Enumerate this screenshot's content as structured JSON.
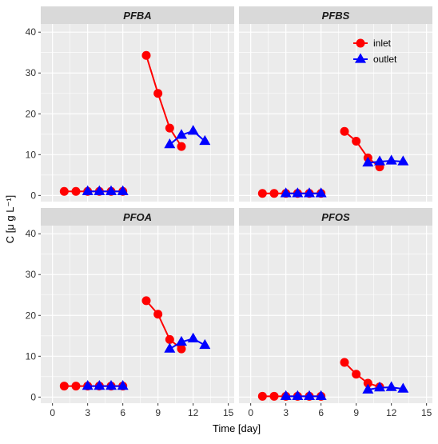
{
  "chart_data": {
    "type": "line",
    "xlabel": "Time [day]",
    "ylabel": "C [μ g L⁻¹]",
    "xlim": [
      -1,
      15.5
    ],
    "ylim": [
      -1.5,
      42
    ],
    "x_ticks": [
      0,
      3,
      6,
      9,
      12,
      15
    ],
    "y_ticks": [
      0,
      10,
      20,
      30,
      40
    ],
    "grid": true,
    "legend_position": "top-right of PFBS panel",
    "colors": {
      "inlet": "#ff0000",
      "outlet": "#0000ff",
      "panel_bg": "#ebebeb",
      "strip_bg": "#d9d9d9",
      "grid": "#ffffff"
    },
    "legend": [
      {
        "name": "inlet",
        "marker": "circle"
      },
      {
        "name": "outlet",
        "marker": "triangle"
      }
    ],
    "panels": [
      {
        "title": "PFBA",
        "series": [
          {
            "name": "inlet",
            "marker": "circle",
            "points": [
              [
                1,
                1.0
              ],
              [
                2,
                1.0
              ],
              [
                3,
                1.0
              ],
              [
                4,
                1.0
              ],
              [
                5,
                1.0
              ],
              [
                6,
                1.0
              ],
              [
                8,
                34.3
              ],
              [
                9,
                25.0
              ],
              [
                10,
                16.5
              ],
              [
                11,
                12.0
              ]
            ]
          },
          {
            "name": "outlet",
            "marker": "triangle",
            "points": [
              [
                3,
                1.0
              ],
              [
                4,
                1.0
              ],
              [
                5,
                1.0
              ],
              [
                6,
                1.0
              ],
              [
                10,
                12.5
              ],
              [
                11,
                14.8
              ],
              [
                12,
                15.8
              ],
              [
                13,
                13.3
              ]
            ]
          }
        ]
      },
      {
        "title": "PFBS",
        "series": [
          {
            "name": "inlet",
            "marker": "circle",
            "points": [
              [
                1,
                0.5
              ],
              [
                2,
                0.5
              ],
              [
                3,
                0.5
              ],
              [
                4,
                0.5
              ],
              [
                5,
                0.5
              ],
              [
                6,
                0.5
              ],
              [
                8,
                15.7
              ],
              [
                9,
                13.3
              ],
              [
                10,
                9.2
              ],
              [
                11,
                7.0
              ]
            ]
          },
          {
            "name": "outlet",
            "marker": "triangle",
            "points": [
              [
                3,
                0.5
              ],
              [
                4,
                0.5
              ],
              [
                5,
                0.5
              ],
              [
                6,
                0.5
              ],
              [
                10,
                8.0
              ],
              [
                11,
                8.3
              ],
              [
                12,
                8.5
              ],
              [
                13,
                8.3
              ]
            ]
          }
        ]
      },
      {
        "title": "PFOA",
        "series": [
          {
            "name": "inlet",
            "marker": "circle",
            "points": [
              [
                1,
                2.7
              ],
              [
                2,
                2.7
              ],
              [
                3,
                2.7
              ],
              [
                4,
                2.7
              ],
              [
                5,
                2.7
              ],
              [
                6,
                2.7
              ],
              [
                8,
                23.6
              ],
              [
                9,
                20.3
              ],
              [
                10,
                14.1
              ],
              [
                11,
                11.8
              ]
            ]
          },
          {
            "name": "outlet",
            "marker": "triangle",
            "points": [
              [
                3,
                2.7
              ],
              [
                4,
                2.7
              ],
              [
                5,
                2.7
              ],
              [
                6,
                2.7
              ],
              [
                10,
                11.8
              ],
              [
                11,
                13.5
              ],
              [
                12,
                14.3
              ],
              [
                13,
                12.7
              ]
            ]
          }
        ]
      },
      {
        "title": "PFOS",
        "series": [
          {
            "name": "inlet",
            "marker": "circle",
            "points": [
              [
                1,
                0.2
              ],
              [
                2,
                0.2
              ],
              [
                3,
                0.2
              ],
              [
                4,
                0.2
              ],
              [
                5,
                0.2
              ],
              [
                6,
                0.2
              ],
              [
                8,
                8.5
              ],
              [
                9,
                5.6
              ],
              [
                10,
                3.4
              ],
              [
                11,
                2.5
              ]
            ]
          },
          {
            "name": "outlet",
            "marker": "triangle",
            "points": [
              [
                3,
                0.2
              ],
              [
                4,
                0.2
              ],
              [
                5,
                0.2
              ],
              [
                6,
                0.2
              ],
              [
                10,
                1.8
              ],
              [
                11,
                2.3
              ],
              [
                12,
                2.4
              ],
              [
                13,
                2.0
              ]
            ]
          }
        ]
      }
    ]
  }
}
